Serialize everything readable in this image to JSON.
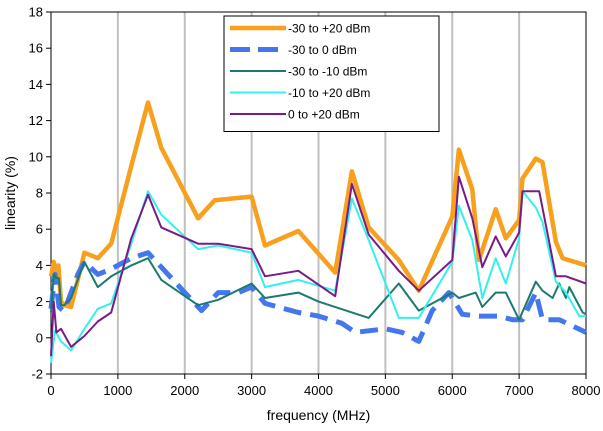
{
  "chart_data": {
    "type": "line",
    "xlabel": "frequency (MHz)",
    "ylabel": "linearity (%)",
    "xlim": [
      0,
      8000
    ],
    "ylim": [
      -2,
      18
    ],
    "xticks": [
      0,
      1000,
      2000,
      3000,
      4000,
      5000,
      6000,
      7000,
      8000
    ],
    "yticks": [
      -2,
      0,
      2,
      4,
      6,
      8,
      10,
      12,
      14,
      16,
      18
    ],
    "grid": "vertical",
    "legend_position": "top-right",
    "series": [
      {
        "name": "-30 to +20 dBm",
        "color": "#f7a01e",
        "style": "solid-thick",
        "points": [
          [
            0,
            3.4
          ],
          [
            40,
            4.2
          ],
          [
            80,
            3.6
          ],
          [
            110,
            4.0
          ],
          [
            150,
            2.0
          ],
          [
            200,
            1.8
          ],
          [
            300,
            1.7
          ],
          [
            500,
            4.7
          ],
          [
            700,
            4.4
          ],
          [
            900,
            5.2
          ],
          [
            1200,
            9.5
          ],
          [
            1450,
            13.0
          ],
          [
            1650,
            10.5
          ],
          [
            2200,
            6.6
          ],
          [
            2450,
            7.6
          ],
          [
            3000,
            7.8
          ],
          [
            3200,
            5.1
          ],
          [
            3700,
            5.9
          ],
          [
            4250,
            3.6
          ],
          [
            4500,
            9.2
          ],
          [
            4750,
            6.1
          ],
          [
            5200,
            4.3
          ],
          [
            5500,
            2.6
          ],
          [
            6000,
            6.7
          ],
          [
            6100,
            10.4
          ],
          [
            6300,
            8.2
          ],
          [
            6400,
            4.3
          ],
          [
            6650,
            7.1
          ],
          [
            6800,
            5.5
          ],
          [
            7000,
            6.5
          ],
          [
            7050,
            8.8
          ],
          [
            7250,
            9.9
          ],
          [
            7350,
            9.7
          ],
          [
            7550,
            5.3
          ],
          [
            7650,
            4.4
          ],
          [
            8000,
            4.0
          ]
        ]
      },
      {
        "name": "-30 to 0 dBm",
        "color": "#4477ee",
        "style": "dashed",
        "points": [
          [
            0,
            1.6
          ],
          [
            60,
            3.5
          ],
          [
            120,
            1.7
          ],
          [
            180,
            1.5
          ],
          [
            250,
            2.0
          ],
          [
            400,
            3.5
          ],
          [
            500,
            4.2
          ],
          [
            700,
            3.5
          ],
          [
            900,
            3.8
          ],
          [
            1200,
            4.4
          ],
          [
            1450,
            4.7
          ],
          [
            1700,
            3.7
          ],
          [
            2250,
            1.5
          ],
          [
            2500,
            2.5
          ],
          [
            2800,
            2.5
          ],
          [
            3000,
            2.8
          ],
          [
            3200,
            1.9
          ],
          [
            3700,
            1.4
          ],
          [
            4000,
            1.2
          ],
          [
            4350,
            0.8
          ],
          [
            4550,
            0.3
          ],
          [
            5000,
            0.5
          ],
          [
            5250,
            0.3
          ],
          [
            5500,
            -0.2
          ],
          [
            5700,
            1.5
          ],
          [
            5950,
            2.5
          ],
          [
            6150,
            1.3
          ],
          [
            6400,
            1.2
          ],
          [
            6700,
            1.2
          ],
          [
            6900,
            1.0
          ],
          [
            7050,
            1.0
          ],
          [
            7250,
            2.5
          ],
          [
            7350,
            1.0
          ],
          [
            7600,
            1.0
          ],
          [
            8000,
            0.3
          ]
        ]
      },
      {
        "name": "-30 to -10 dBm",
        "color": "#1a7a72",
        "style": "solid",
        "points": [
          [
            0,
            1.4
          ],
          [
            40,
            3.5
          ],
          [
            80,
            3.3
          ],
          [
            120,
            3.3
          ],
          [
            150,
            1.8
          ],
          [
            200,
            1.8
          ],
          [
            300,
            2.2
          ],
          [
            500,
            4.2
          ],
          [
            700,
            2.8
          ],
          [
            900,
            3.4
          ],
          [
            1200,
            4.0
          ],
          [
            1450,
            4.4
          ],
          [
            1650,
            3.2
          ],
          [
            2200,
            1.8
          ],
          [
            2500,
            2.1
          ],
          [
            3000,
            3.0
          ],
          [
            3200,
            2.2
          ],
          [
            3700,
            2.5
          ],
          [
            4000,
            2.0
          ],
          [
            4750,
            1.1
          ],
          [
            5200,
            3.0
          ],
          [
            5500,
            1.5
          ],
          [
            6000,
            2.5
          ],
          [
            6100,
            2.2
          ],
          [
            6350,
            2.5
          ],
          [
            6450,
            1.7
          ],
          [
            6650,
            2.5
          ],
          [
            6800,
            2.5
          ],
          [
            7000,
            1.0
          ],
          [
            7250,
            3.1
          ],
          [
            7350,
            2.6
          ],
          [
            7500,
            2.2
          ],
          [
            7600,
            3.0
          ],
          [
            7700,
            2.2
          ],
          [
            7750,
            2.8
          ],
          [
            7950,
            1.4
          ],
          [
            8000,
            1.3
          ]
        ]
      },
      {
        "name": "-10 to +20 dBm",
        "color": "#33f0ee",
        "style": "solid",
        "points": [
          [
            0,
            -1.4
          ],
          [
            60,
            0.4
          ],
          [
            150,
            -0.2
          ],
          [
            300,
            -0.7
          ],
          [
            500,
            0.5
          ],
          [
            700,
            1.6
          ],
          [
            900,
            1.9
          ],
          [
            1200,
            5.2
          ],
          [
            1450,
            8.1
          ],
          [
            1650,
            6.8
          ],
          [
            2200,
            4.9
          ],
          [
            2500,
            5.1
          ],
          [
            3000,
            4.7
          ],
          [
            3200,
            2.8
          ],
          [
            3700,
            3.2
          ],
          [
            4250,
            2.6
          ],
          [
            4500,
            7.7
          ],
          [
            4750,
            5.4
          ],
          [
            5200,
            1.1
          ],
          [
            5500,
            1.1
          ],
          [
            6000,
            4.2
          ],
          [
            6100,
            7.3
          ],
          [
            6300,
            5.4
          ],
          [
            6450,
            2.2
          ],
          [
            6650,
            4.4
          ],
          [
            6800,
            3.0
          ],
          [
            7000,
            5.5
          ],
          [
            7050,
            8.1
          ],
          [
            7250,
            7.2
          ],
          [
            7350,
            6.4
          ],
          [
            7550,
            3.1
          ],
          [
            7700,
            2.5
          ],
          [
            7900,
            1.2
          ],
          [
            8000,
            1.2
          ]
        ]
      },
      {
        "name": "0 to +20 dBm",
        "color": "#7a1a86",
        "style": "solid",
        "points": [
          [
            0,
            -1.0
          ],
          [
            40,
            2.0
          ],
          [
            80,
            0.3
          ],
          [
            150,
            0.5
          ],
          [
            300,
            -0.5
          ],
          [
            500,
            0.1
          ],
          [
            700,
            0.9
          ],
          [
            900,
            1.4
          ],
          [
            1200,
            5.5
          ],
          [
            1450,
            7.9
          ],
          [
            1650,
            6.1
          ],
          [
            2200,
            5.2
          ],
          [
            2500,
            5.2
          ],
          [
            3000,
            4.9
          ],
          [
            3200,
            3.4
          ],
          [
            3700,
            3.7
          ],
          [
            4250,
            2.3
          ],
          [
            4500,
            8.5
          ],
          [
            4750,
            5.7
          ],
          [
            5200,
            3.7
          ],
          [
            5500,
            2.6
          ],
          [
            6000,
            4.3
          ],
          [
            6100,
            8.9
          ],
          [
            6300,
            6.6
          ],
          [
            6450,
            3.9
          ],
          [
            6650,
            5.6
          ],
          [
            6800,
            4.5
          ],
          [
            7000,
            5.8
          ],
          [
            7050,
            8.1
          ],
          [
            7300,
            8.1
          ],
          [
            7550,
            3.4
          ],
          [
            7700,
            3.4
          ],
          [
            8000,
            3.0
          ]
        ]
      }
    ]
  }
}
